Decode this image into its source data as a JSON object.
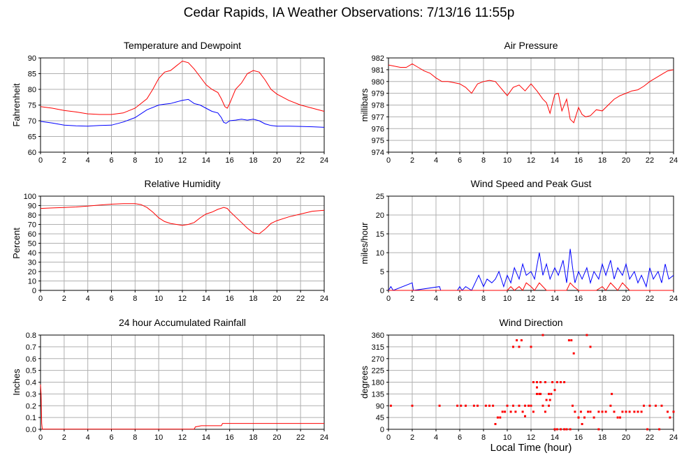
{
  "page_title": "Cedar Rapids, IA Weather Observations: 7/13/16 11:55p",
  "xaxis_label": "Local Time (hour)",
  "colors": {
    "primary": "#ff0000",
    "secondary": "#0000ff",
    "grid": "#b0b0b0"
  },
  "chart_data": [
    {
      "type": "line",
      "title": "Temperature and Dewpoint",
      "ylabel": "Fahrenheit",
      "xlim": [
        0,
        24
      ],
      "ylim": [
        60,
        90
      ],
      "xticks": [
        0,
        2,
        4,
        6,
        8,
        10,
        12,
        14,
        16,
        18,
        20,
        22,
        24
      ],
      "yticks": [
        60,
        65,
        70,
        75,
        80,
        85,
        90
      ],
      "grid": true,
      "series": [
        {
          "color": "#ff0000",
          "x": [
            0,
            1,
            2,
            3,
            4,
            5,
            6,
            7,
            8,
            9,
            9.5,
            10,
            10.5,
            11,
            11.5,
            12,
            12.5,
            13,
            13.5,
            14,
            14.5,
            15,
            15.3,
            15.6,
            15.8,
            16,
            16.5,
            17,
            17.5,
            18,
            18.5,
            19,
            19.5,
            20,
            21,
            22,
            23,
            24
          ],
          "y": [
            74.5,
            74,
            73.3,
            72.8,
            72.2,
            72,
            72,
            72.5,
            74,
            77,
            80,
            83.5,
            85.5,
            86,
            87.5,
            89,
            88.5,
            86.5,
            84,
            81.5,
            80,
            79,
            77,
            74.5,
            74,
            75.5,
            80,
            82,
            85,
            86,
            85.5,
            83,
            80,
            78.5,
            76.5,
            75,
            74,
            73
          ]
        },
        {
          "color": "#0000ff",
          "x": [
            0,
            1,
            2,
            3,
            4,
            5,
            6,
            7,
            8,
            9,
            10,
            10.5,
            11,
            11.5,
            12,
            12.5,
            13,
            13.5,
            14,
            14.5,
            15,
            15.3,
            15.5,
            15.7,
            16,
            16.5,
            17,
            17.5,
            18,
            18.5,
            19,
            19.5,
            20,
            21,
            22,
            23,
            24
          ],
          "y": [
            69.8,
            69.3,
            68.6,
            68.4,
            68.3,
            68.5,
            68.6,
            69.6,
            71,
            73.5,
            75,
            75.3,
            75.5,
            76,
            76.5,
            76.8,
            75.5,
            75,
            74,
            73,
            72.5,
            71,
            69.5,
            69.2,
            70,
            70.2,
            70.5,
            70.2,
            70.5,
            70,
            69,
            68.5,
            68.3,
            68.3,
            68.2,
            68.1,
            67.9
          ]
        }
      ]
    },
    {
      "type": "line",
      "title": "Air Pressure",
      "ylabel": "millibars",
      "xlim": [
        0,
        24
      ],
      "ylim": [
        974,
        982
      ],
      "xticks": [
        0,
        2,
        4,
        6,
        8,
        10,
        12,
        14,
        16,
        18,
        20,
        22,
        24
      ],
      "yticks": [
        974,
        975,
        976,
        977,
        978,
        979,
        980,
        981,
        982
      ],
      "grid": true,
      "series": [
        {
          "color": "#ff0000",
          "x": [
            0,
            1,
            1.5,
            2,
            2.5,
            3,
            3.5,
            4,
            4.5,
            5,
            5.5,
            6,
            6.5,
            7,
            7.5,
            8,
            8.5,
            9,
            9.5,
            10,
            10.5,
            11,
            11.5,
            12,
            12.5,
            13,
            13.3,
            13.6,
            14,
            14.3,
            14.6,
            15,
            15.3,
            15.6,
            16,
            16.3,
            16.6,
            17,
            17.5,
            18,
            18.5,
            19,
            19.5,
            20,
            20.5,
            21,
            21.5,
            22,
            22.5,
            23,
            23.5,
            24
          ],
          "y": [
            981.4,
            981.2,
            981.2,
            981.5,
            981.2,
            980.9,
            980.7,
            980.3,
            980,
            980,
            979.9,
            979.8,
            979.5,
            979,
            979.8,
            980,
            980.1,
            980,
            979.4,
            978.8,
            979.5,
            979.7,
            979.2,
            979.8,
            979.2,
            978.5,
            978.2,
            977.3,
            978.9,
            979.0,
            977.5,
            978.5,
            976.8,
            976.5,
            977.8,
            977.2,
            977.0,
            977.1,
            977.6,
            977.5,
            978.0,
            978.5,
            978.8,
            979.0,
            979.2,
            979.3,
            979.6,
            980.0,
            980.3,
            980.6,
            980.9,
            981.0
          ]
        }
      ]
    },
    {
      "type": "line",
      "title": "Relative Humidity",
      "ylabel": "Percent",
      "xlim": [
        0,
        24
      ],
      "ylim": [
        0,
        100
      ],
      "xticks": [
        0,
        2,
        4,
        6,
        8,
        10,
        12,
        14,
        16,
        18,
        20,
        22,
        24
      ],
      "yticks": [
        0,
        10,
        20,
        30,
        40,
        50,
        60,
        70,
        80,
        90,
        100
      ],
      "grid": true,
      "series": [
        {
          "color": "#ff0000",
          "x": [
            0,
            1,
            2,
            3,
            4,
            5,
            6,
            7,
            8,
            8.5,
            9,
            9.5,
            10,
            10.5,
            11,
            11.5,
            12,
            12.5,
            13,
            13.5,
            14,
            14.5,
            15,
            15.5,
            15.8,
            16,
            16.5,
            17,
            17.5,
            18,
            18.5,
            19,
            19.5,
            20,
            21,
            22,
            23,
            24
          ],
          "y": [
            87,
            87.5,
            88,
            88.5,
            89.5,
            90.5,
            91.5,
            92,
            92,
            91,
            88,
            83,
            77,
            73,
            71,
            70,
            69,
            70,
            72,
            77,
            81,
            83,
            86,
            88,
            87,
            84,
            78,
            72,
            66,
            61,
            60,
            65,
            71,
            74,
            78,
            81,
            84,
            85
          ]
        }
      ]
    },
    {
      "type": "line",
      "title": "Wind Speed and Peak Gust",
      "ylabel": "miles/hour",
      "xlim": [
        0,
        24
      ],
      "ylim": [
        0,
        25
      ],
      "xticks": [
        0,
        2,
        4,
        6,
        8,
        10,
        12,
        14,
        16,
        18,
        20,
        22,
        24
      ],
      "yticks": [
        0,
        5,
        10,
        15,
        20,
        25
      ],
      "grid": true,
      "series": [
        {
          "color": "#0000ff",
          "x": [
            0,
            0.2,
            0.4,
            2,
            2.1,
            4.3,
            4.4,
            5.8,
            6.0,
            6.2,
            6.5,
            7.0,
            7.3,
            7.6,
            8.0,
            8.3,
            8.7,
            9.0,
            9.3,
            9.7,
            10.0,
            10.3,
            10.6,
            11.0,
            11.3,
            11.6,
            12.0,
            12.3,
            12.7,
            13.0,
            13.3,
            13.6,
            14.0,
            14.3,
            14.7,
            15.0,
            15.3,
            15.5,
            15.7,
            16.0,
            16.3,
            16.7,
            17.0,
            17.3,
            17.7,
            18.0,
            18.3,
            18.7,
            19.0,
            19.3,
            19.7,
            20.0,
            20.3,
            20.7,
            21.0,
            21.3,
            21.7,
            22.0,
            22.3,
            22.7,
            23.0,
            23.3,
            23.6,
            24.0
          ],
          "y": [
            0,
            1,
            0,
            2,
            0,
            1,
            0,
            0,
            1,
            0,
            1,
            0,
            2,
            4,
            1,
            3,
            2,
            3,
            5,
            1,
            4,
            2,
            6,
            3,
            7,
            4,
            5,
            3,
            10,
            4,
            7,
            3,
            6,
            4,
            8,
            2,
            11,
            6,
            2,
            5,
            3,
            6,
            2,
            5,
            3,
            7,
            4,
            8,
            3,
            6,
            4,
            7,
            3,
            5,
            2,
            4,
            1,
            6,
            3,
            5,
            2,
            7,
            3,
            4
          ]
        },
        {
          "color": "#ff0000",
          "x": [
            0,
            10,
            10.3,
            10.6,
            11,
            11.3,
            11.6,
            12,
            12.3,
            12.7,
            13,
            13.3,
            15,
            15.3,
            15.6,
            16,
            17.5,
            18,
            18.3,
            18.7,
            19,
            19.3,
            19.7,
            20,
            20.3,
            24
          ],
          "y": [
            0,
            0,
            1,
            0,
            1,
            0,
            2,
            1,
            0,
            2,
            1,
            0,
            0,
            2,
            1,
            0,
            0,
            1,
            0,
            2,
            1,
            0,
            2,
            1,
            0,
            0
          ]
        }
      ]
    },
    {
      "type": "line",
      "title": "24 hour Accumulated Rainfall",
      "ylabel": "Inches",
      "xlim": [
        0,
        24
      ],
      "ylim": [
        0,
        0.8
      ],
      "xticks": [
        0,
        2,
        4,
        6,
        8,
        10,
        12,
        14,
        16,
        18,
        20,
        22,
        24
      ],
      "yticks": [
        0,
        0.1,
        0.2,
        0.3,
        0.4,
        0.5,
        0.6,
        0.7,
        0.8
      ],
      "ytick_labels": [
        "0.0",
        "0.1",
        "0.2",
        "0.3",
        "0.4",
        "0.5",
        "0.6",
        "0.7",
        "0.8"
      ],
      "grid": true,
      "series": [
        {
          "color": "#ff0000",
          "x": [
            0,
            0.05,
            0.1,
            0.15,
            13,
            13.1,
            13.6,
            15.3,
            15.4,
            24
          ],
          "y": [
            0.38,
            0.3,
            0.05,
            0.002,
            0.002,
            0.02,
            0.03,
            0.03,
            0.05,
            0.05
          ]
        }
      ]
    },
    {
      "type": "scatter",
      "title": "Wind Direction",
      "ylabel": "degrees",
      "xlim": [
        0,
        24
      ],
      "ylim": [
        0,
        360
      ],
      "xticks": [
        0,
        2,
        4,
        6,
        8,
        10,
        12,
        14,
        16,
        18,
        20,
        22,
        24
      ],
      "yticks": [
        0,
        45,
        90,
        135,
        180,
        225,
        270,
        315,
        360
      ],
      "grid": true,
      "series": [
        {
          "color": "#ff0000",
          "x": [
            0.2,
            2,
            4.3,
            5.8,
            6.1,
            6.5,
            7.2,
            7.5,
            8.2,
            8.5,
            8.8,
            9.0,
            9.2,
            9.4,
            9.6,
            9.8,
            10.0,
            10.3,
            10.5,
            10.7,
            11.0,
            11.3,
            11.5,
            11.8,
            12.0,
            12.2,
            12.5,
            12.7,
            13.0,
            13.2,
            13.5,
            13.7,
            14.0,
            14.2,
            14.5,
            14.8,
            15.0,
            15.3,
            15.5,
            15.7,
            16.0,
            16.2,
            16.5,
            16.8,
            17.0,
            17.3,
            17.7,
            18.0,
            18.3,
            18.7,
            19.0,
            19.3,
            19.7,
            20.0,
            20.3,
            20.7,
            21.0,
            21.5,
            22.0,
            22.5,
            23.0,
            23.5,
            24.0,
            10.5,
            10.8,
            11.0,
            11.2,
            11.5,
            12.2,
            12.5,
            12.8,
            13.0,
            13.2,
            13.5,
            13.8,
            14.2,
            14.5,
            14.8,
            15.2,
            15.4,
            15.6,
            16.7,
            17.0,
            12.0,
            12.5,
            12.8,
            13.3,
            13.6,
            14.0,
            16.0,
            16.3,
            17.7,
            18.8,
            19.5,
            21.3,
            21.8,
            22.8,
            23.7
          ],
          "y": [
            90,
            90,
            90,
            90,
            90,
            90,
            90,
            90,
            90,
            90,
            90,
            20,
            45,
            45,
            67,
            67,
            90,
            67,
            90,
            67,
            90,
            67,
            90,
            90,
            90,
            67,
            135,
            135,
            90,
            67,
            90,
            135,
            0,
            0,
            0,
            0,
            0,
            0,
            90,
            67,
            45,
            67,
            45,
            67,
            67,
            45,
            67,
            67,
            67,
            90,
            67,
            45,
            67,
            67,
            67,
            67,
            67,
            90,
            90,
            90,
            90,
            67,
            67,
            315,
            340,
            315,
            340,
            50,
            180,
            180,
            180,
            360,
            180,
            135,
            180,
            180,
            180,
            180,
            340,
            340,
            290,
            360,
            315,
            315,
            160,
            135,
            112,
            112,
            150,
            45,
            20,
            0,
            135,
            45,
            67,
            0,
            0,
            45
          ]
        }
      ]
    }
  ]
}
